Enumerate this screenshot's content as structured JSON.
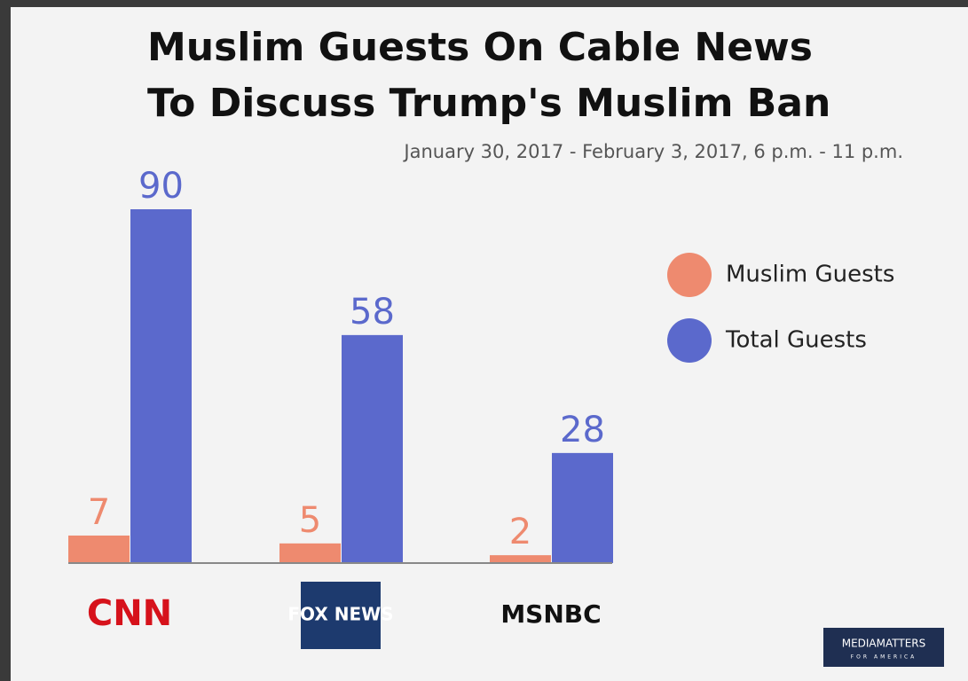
{
  "chart_data": {
    "type": "bar",
    "title": "Muslim Guests On Cable News",
    "title_line2": "To Discuss Trump's Muslim Ban",
    "subtitle": "January 30, 2017 - February 3, 2017, 6 p.m. - 11 p.m.",
    "categories": [
      "CNN",
      "FOX NEWS",
      "MSNBC"
    ],
    "series": [
      {
        "name": "Muslim Guests",
        "color": "#ee8a6f",
        "values": [
          7,
          5,
          2
        ]
      },
      {
        "name": "Total Guests",
        "color": "#5b69cc",
        "values": [
          90,
          58,
          28
        ]
      }
    ],
    "ylim": [
      0,
      90
    ],
    "legend": "right",
    "credit": "MEDIAMATTERS",
    "credit_tagline": "FOR AMERICA"
  }
}
